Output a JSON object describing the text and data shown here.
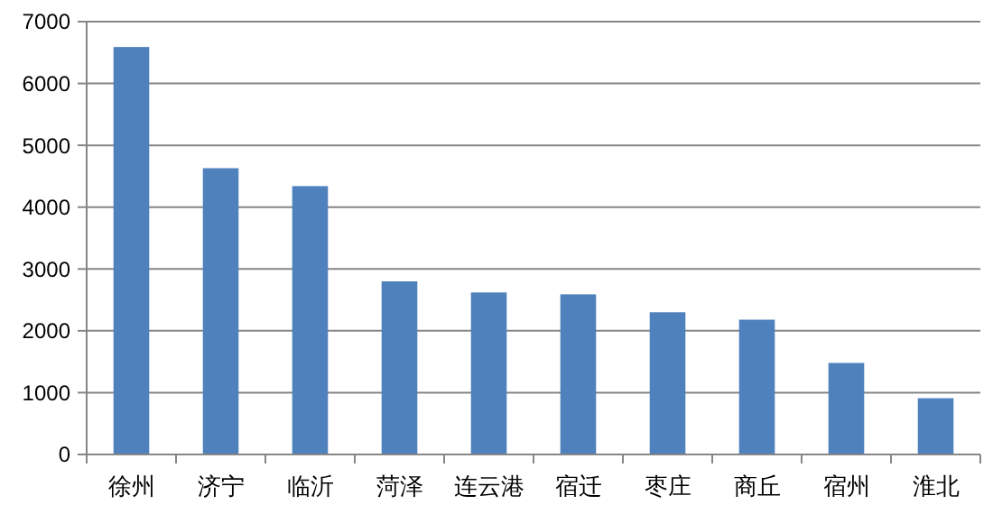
{
  "chart_data": {
    "type": "bar",
    "categories": [
      "徐州",
      "济宁",
      "临沂",
      "菏泽",
      "连云港",
      "宿迁",
      "枣庄",
      "商丘",
      "宿州",
      "淮北"
    ],
    "values": [
      6590,
      4630,
      4340,
      2800,
      2620,
      2590,
      2300,
      2180,
      1480,
      910
    ],
    "color": "#4f81bd",
    "ylim": [
      0,
      7000
    ],
    "yticks": [
      0,
      1000,
      2000,
      3000,
      4000,
      5000,
      6000,
      7000
    ],
    "grid": "y"
  }
}
